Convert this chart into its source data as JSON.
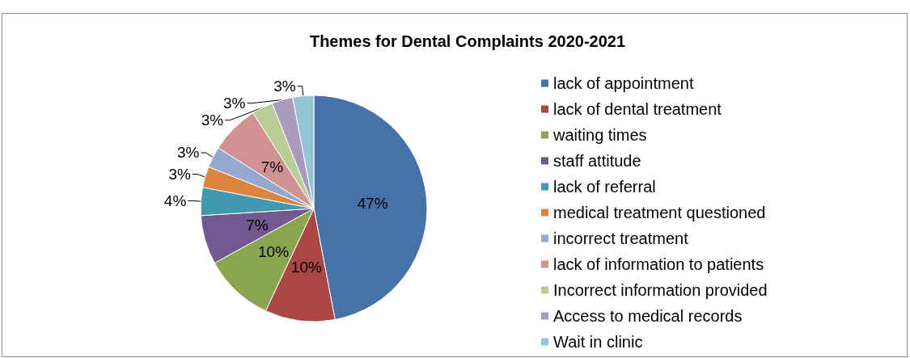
{
  "chart_data": {
    "type": "pie",
    "title": "Themes for Dental Complaints 2020-2021",
    "categories": [
      "lack of appointment",
      "lack of dental treatment",
      "waiting times",
      "staff attitude",
      "lack of referral",
      "medical treatment questioned",
      "incorrect treatment",
      "lack of information to patients",
      "Incorrect information provided",
      "Access to medical records",
      "Wait in clinic"
    ],
    "values": [
      47,
      10,
      10,
      7,
      4,
      3,
      3,
      7,
      3,
      3,
      3
    ],
    "colors": [
      "#4572a7",
      "#aa4643",
      "#89a54e",
      "#71588f",
      "#4198af",
      "#db843d",
      "#93a9cf",
      "#d19392",
      "#b9cd96",
      "#a99bbd",
      "#92c5d6"
    ],
    "value_labels": [
      "47%",
      "10%",
      "10%",
      "7%",
      "4%",
      "3%",
      "3%",
      "7%",
      "3%",
      "3%",
      "3%"
    ],
    "legend": "right"
  }
}
